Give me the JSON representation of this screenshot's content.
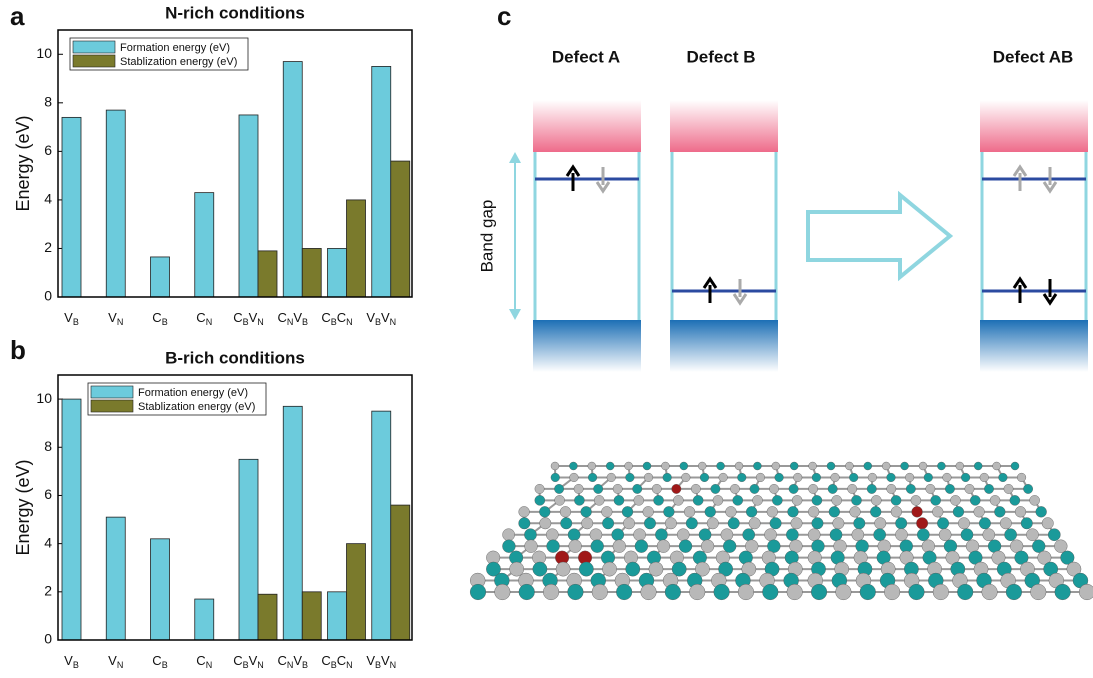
{
  "chart_data": [
    {
      "type": "bar",
      "panel": "a",
      "title": "N-rich conditions",
      "ylabel": "Energy (eV)",
      "categories": [
        "VB",
        "VN",
        "CB",
        "CN",
        "CBVN",
        "CNVB",
        "CBCN",
        "VBVN"
      ],
      "series": [
        {
          "name": "Formation energy (eV)",
          "color": "#6ccbdc",
          "values": [
            7.4,
            7.7,
            1.65,
            4.3,
            7.5,
            9.7,
            2.0,
            9.5
          ]
        },
        {
          "name": "Stablization energy (eV)",
          "color": "#7a7a2c",
          "values": [
            null,
            null,
            null,
            null,
            1.9,
            2.0,
            4.0,
            5.6
          ]
        }
      ],
      "ylim": [
        0,
        11
      ],
      "yticks": [
        0,
        2,
        4,
        6,
        8,
        10
      ]
    },
    {
      "type": "bar",
      "panel": "b",
      "title": "B-rich conditions",
      "ylabel": "Energy (eV)",
      "categories": [
        "VB",
        "VN",
        "CB",
        "CN",
        "CBVN",
        "CNVB",
        "CBCN",
        "VBVN"
      ],
      "series": [
        {
          "name": "Formation energy (eV)",
          "color": "#6ccbdc",
          "values": [
            10.0,
            5.1,
            4.2,
            1.7,
            7.5,
            9.7,
            2.0,
            9.5
          ]
        },
        {
          "name": "Stablization energy (eV)",
          "color": "#7a7a2c",
          "values": [
            null,
            null,
            null,
            null,
            1.9,
            2.0,
            4.0,
            5.6
          ]
        }
      ],
      "ylim": [
        0,
        11
      ],
      "yticks": [
        0,
        2,
        4,
        6,
        8,
        10
      ]
    }
  ],
  "diagram": {
    "panel": "c",
    "labels": [
      "Defect A",
      "Defect B",
      "Defect AB"
    ],
    "band_gap": "Band gap"
  }
}
